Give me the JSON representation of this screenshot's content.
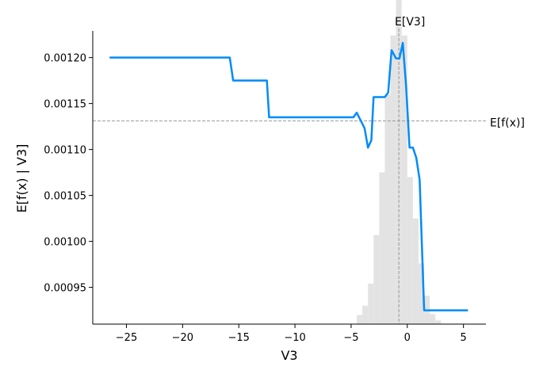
{
  "chart_data": {
    "type": "line",
    "title": "",
    "xlabel": "V3",
    "ylabel": "E[f(x) | V3]",
    "xlim": [
      -28,
      7
    ],
    "ylim": [
      0.00091,
      0.001229
    ],
    "x_ticks": [
      -25,
      -20,
      -15,
      -10,
      -5,
      0,
      5
    ],
    "x_tick_labels": [
      "−25",
      "−20",
      "−15",
      "−10",
      "−5",
      "0",
      "5"
    ],
    "y_ticks": [
      0.00095,
      0.001,
      0.00105,
      0.0011,
      0.00115,
      0.0012
    ],
    "y_tick_labels": [
      "0.00095",
      "0.00100",
      "0.00105",
      "0.00110",
      "0.00115",
      "0.00120"
    ],
    "grid": false,
    "line_color": "#008bfb",
    "series": [
      {
        "points": [
          [
            -26.5,
            0.0012
          ],
          [
            -15.8,
            0.0012
          ],
          [
            -15.5,
            0.001175
          ],
          [
            -12.5,
            0.001175
          ],
          [
            -12.3,
            0.001135
          ],
          [
            -4.8,
            0.001135
          ],
          [
            -4.5,
            0.00114
          ],
          [
            -4.0,
            0.001128
          ],
          [
            -3.8,
            0.001123
          ],
          [
            -3.5,
            0.001102
          ],
          [
            -3.2,
            0.00111
          ],
          [
            -3.0,
            0.001157
          ],
          [
            -2.0,
            0.001157
          ],
          [
            -1.7,
            0.001162
          ],
          [
            -1.4,
            0.001208
          ],
          [
            -1.0,
            0.001199
          ],
          [
            -0.7,
            0.001199
          ],
          [
            -0.4,
            0.001216
          ],
          [
            -0.1,
            0.001168
          ],
          [
            0.2,
            0.001102
          ],
          [
            0.5,
            0.001102
          ],
          [
            0.8,
            0.001091
          ],
          [
            1.1,
            0.001067
          ],
          [
            1.5,
            0.000925
          ],
          [
            5.4,
            0.000925
          ]
        ]
      }
    ],
    "histogram": {
      "color": "#e3e3e3",
      "bin_edges": [
        -7.0,
        -6.0,
        -5.0,
        -4.5,
        -4.0,
        -3.5,
        -3.0,
        -2.5,
        -2.0,
        -1.5,
        -1.0,
        -0.5,
        0.0,
        0.5,
        1.0,
        1.5,
        2.0,
        2.5,
        3.0
      ],
      "heights": [
        0.0,
        0.0,
        0.0,
        1e-05,
        2e-05,
        4.4e-05,
        9.7e-05,
        0.000165,
        0.00025,
        0.000314,
        0.000355,
        0.000314,
        0.00016,
        0.000115,
        6.6e-05,
        3.1e-05,
        1.1e-05,
        4e-06
      ]
    },
    "reference_lines": [
      {
        "orientation": "vertical",
        "x": -0.75,
        "label": "E[V3]",
        "color": "#999999"
      },
      {
        "orientation": "horizontal",
        "y": 0.001131,
        "label": "E[f(x)]",
        "color": "#999999"
      }
    ]
  }
}
